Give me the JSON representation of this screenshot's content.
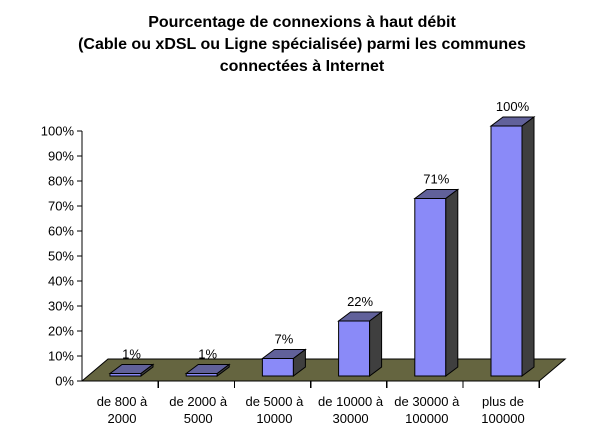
{
  "window": {
    "background": "#ffffff"
  },
  "chart_data": {
    "type": "bar",
    "style_3d": true,
    "title": "Pourcentage de connexions à haut débit (Cable ou xDSL ou Ligne spécialisée) parmi les communes connectées à Internet",
    "title_lines": [
      "Pourcentage de connexions à haut débit",
      "(Cable ou xDSL ou Ligne spécialisée) parmi les communes",
      "connectées à Internet"
    ],
    "categories": [
      "de 800 à 2000",
      "de 2000 à 5000",
      "de 5000 à 10000",
      "de 10000 à 30000",
      "de 30000 à 100000",
      "plus de 100000"
    ],
    "category_label_lines": [
      [
        "de 800 à",
        "2000"
      ],
      [
        "de 2000 à",
        "5000"
      ],
      [
        "de 5000 à",
        "10000"
      ],
      [
        "de 10000 à",
        "30000"
      ],
      [
        "de 30000 à",
        "100000"
      ],
      [
        "plus de",
        "100000"
      ]
    ],
    "values": [
      1,
      1,
      7,
      22,
      71,
      100
    ],
    "value_labels": [
      "1%",
      "1%",
      "7%",
      "22%",
      "71%",
      "100%"
    ],
    "xlabel": "",
    "ylabel": "",
    "ylim": [
      0,
      100
    ],
    "ytick_step": 10,
    "ytick_labels_top_down": [
      "100%",
      "90%",
      "80%",
      "70%",
      "60%",
      "50%",
      "40%",
      "30%",
      "20%",
      "10%",
      "0%"
    ],
    "grid": "off",
    "legend": "none",
    "colors": {
      "bar_front": "#8a8af8",
      "bar_top": "#61619a",
      "bar_side": "#3f3f3f",
      "floor": "#656540",
      "outline": "#000000",
      "text": "#000000",
      "background": "#ffffff"
    }
  }
}
